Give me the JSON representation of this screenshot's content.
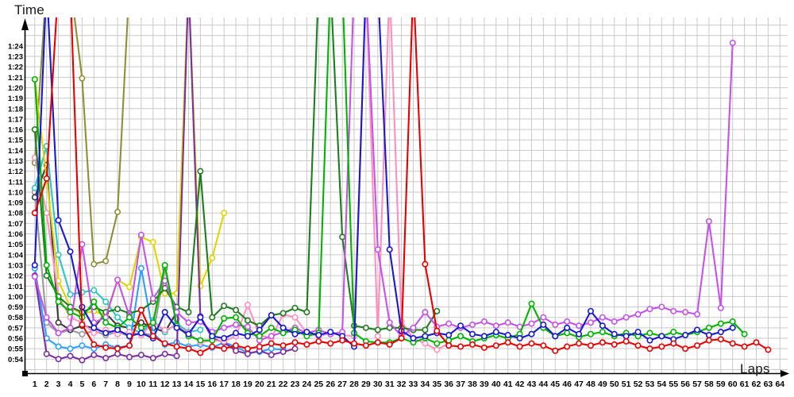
{
  "chart_data": {
    "type": "line",
    "title": "",
    "xlabel": "Laps",
    "ylabel": "Time",
    "x_axis": {
      "min": 1,
      "max": 64,
      "tick_interval": 1
    },
    "y_axis": {
      "min_label": "0:54",
      "max_label": "1:24",
      "tick_interval_seconds": 1,
      "format": "m:ss",
      "off_scale_seconds": 90
    },
    "grid": "on",
    "grid_color": "#c9c9c9",
    "legend": "none",
    "x_tick_labels": [
      "1",
      "2",
      "3",
      "4",
      "5",
      "6",
      "7",
      "8",
      "9",
      "10",
      "11",
      "12",
      "13",
      "14",
      "15",
      "16",
      "17",
      "18",
      "19",
      "20",
      "21",
      "22",
      "23",
      "24",
      "25",
      "26",
      "27",
      "28",
      "29",
      "30",
      "31",
      "32",
      "33",
      "34",
      "35",
      "36",
      "37",
      "38",
      "39",
      "40",
      "41",
      "42",
      "43",
      "44",
      "45",
      "46",
      "47",
      "48",
      "49",
      "50",
      "51",
      "52",
      "53",
      "54",
      "55",
      "56",
      "57",
      "58",
      "59",
      "60",
      "61",
      "62",
      "63",
      "64"
    ],
    "y_tick_labels": [
      "1:24",
      "1:23",
      "1:22",
      "1:21",
      "1:20",
      "1:19",
      "1:18",
      "1:17",
      "1:16",
      "1:15",
      "1:14",
      "1:13",
      "1:12",
      "1:11",
      "1:10",
      "1:09",
      "1:08",
      "1:07",
      "1:06",
      "1:05",
      "1:04",
      "1:03",
      "1:02",
      "1:01",
      "1:00",
      "0:59",
      "0:58",
      "0:57",
      "0:56",
      "0:55",
      "0:54"
    ],
    "note": "values are lap times in seconds; 90 = spike above chart top (off-scale)",
    "series": [
      {
        "name": "olive",
        "color": "#8f8f39",
        "values": [
          72.8,
          90,
          90,
          90,
          80.9,
          63.1,
          63.4,
          68.1,
          90
        ]
      },
      {
        "name": "gray",
        "color": "#9a9a9a",
        "values": [
          70.0,
          57.5,
          56.5,
          56.8,
          56.4,
          56.7,
          56.3,
          56.6,
          56.2,
          56.5,
          56.3,
          62.7,
          57.8
        ]
      },
      {
        "name": "black",
        "color": "#3c3c3c",
        "values": [
          69.5,
          72.6,
          57.5,
          56.8,
          57.2,
          57.0,
          58.4,
          57.2,
          57.0,
          57.5,
          57.0,
          56.6,
          58.5
        ]
      },
      {
        "name": "cyan",
        "color": "#2cc4c4",
        "values": [
          70.4,
          74.4,
          64.0,
          60.2,
          60.4,
          60.6,
          59.5,
          58.0,
          57.0,
          56.5,
          57.7,
          56.6,
          57.4,
          56.6,
          56.8
        ]
      },
      {
        "name": "skyblue",
        "color": "#2e9fff",
        "values": [
          62.7,
          56.0,
          55.2,
          55.0,
          55.3,
          55.0,
          55.4,
          55.1,
          55.3,
          62.7,
          56.5,
          55.4,
          55.6,
          55.2,
          55.4,
          55.1,
          55.6,
          55.2,
          54.6,
          54.7,
          55.0,
          54.9
        ]
      },
      {
        "name": "yellow",
        "color": "#e2d400",
        "values": [
          80.8,
          71.3,
          61.5,
          59.0,
          58.3,
          58.6,
          58.2,
          61.6,
          60.9,
          65.7,
          65.2,
          60.3,
          60.3,
          90,
          61.0,
          63.7,
          68.0
        ]
      },
      {
        "name": "purple",
        "color": "#7b2fa0",
        "values": [
          62.0,
          54.5,
          54.0,
          54.3,
          53.9,
          54.4,
          54.1,
          54.5,
          54.2,
          54.4,
          54.1,
          54.5,
          54.3,
          90,
          58.1,
          56.0,
          55.6,
          54.8,
          54.5,
          54.8,
          54.4,
          54.7,
          55.0
        ]
      },
      {
        "name": "pink",
        "color": "#ff8fc0",
        "values": [
          73.3,
          68.0,
          60.0,
          58.0,
          57.5,
          56.5,
          56.8,
          56.4,
          56.6,
          56.3,
          57.5,
          56.8,
          57.2,
          56.5,
          55.6,
          55.8,
          55.7,
          56.2,
          59.2,
          56.3,
          56.0,
          58.3,
          58.0,
          56.5,
          56.2,
          56.5,
          56.3,
          56.2,
          90,
          56.2,
          90,
          57.6,
          56.0,
          55.5,
          54.9,
          55.5
        ]
      },
      {
        "name": "darkgreen",
        "color": "#1e7d1e",
        "values": [
          76.0,
          62.0,
          60.0,
          59.0,
          58.5,
          59.0,
          58.5,
          58.8,
          58.4,
          58.7,
          59.5,
          60.8,
          59.0,
          58.5,
          72.0,
          58.0,
          59.1,
          58.7,
          57.7,
          57.2,
          58.2,
          58.4,
          58.9,
          58.5,
          90,
          90,
          65.7,
          57.2,
          57.0,
          56.8,
          57.0,
          57.0,
          56.8,
          56.8,
          58.6
        ]
      },
      {
        "name": "magenta",
        "color": "#c653e8",
        "values": [
          61.9,
          58.0,
          56.5,
          57.0,
          65.0,
          57.5,
          58.0,
          61.6,
          58.1,
          65.9,
          59.8,
          61.5,
          58.5,
          57.5,
          57.6,
          56.6,
          57.0,
          57.3,
          57.1,
          55.8,
          56.2,
          56.6,
          57.0,
          56.5,
          56.8,
          56.4,
          56.6,
          90,
          90,
          64.5,
          57.5,
          56.2,
          57.0,
          58.5,
          57.1,
          57.4,
          57.0,
          57.3,
          57.6,
          57.2,
          57.5,
          57.1,
          57.4,
          58.0,
          57.3,
          57.6,
          57.2,
          57.5,
          58.0,
          57.6,
          58.0,
          58.3,
          58.8,
          59.0,
          58.6,
          58.5,
          58.3,
          67.2,
          58.9,
          84.3
        ]
      },
      {
        "name": "green",
        "color": "#00b400",
        "values": [
          80.8,
          63.0,
          59.5,
          58.5,
          58.0,
          59.5,
          57.5,
          57.0,
          58.0,
          57.0,
          57.5,
          63.0,
          57.2,
          56.2,
          55.8,
          55.8,
          57.9,
          58.0,
          56.5,
          56.2,
          57.0,
          56.5,
          56.8,
          56.2,
          56.5,
          90,
          90,
          56.5,
          55.7,
          55.6,
          55.6,
          56.0,
          55.6,
          56.0,
          55.5,
          55.8,
          56.2,
          55.7,
          56.0,
          56.3,
          56.0,
          56.4,
          59.3,
          57.0,
          56.2,
          56.5,
          56.1,
          56.4,
          56.6,
          56.2,
          56.5,
          56.2,
          56.5,
          56.2,
          56.6,
          56.3,
          56.6,
          57.0,
          57.4,
          57.6,
          56.4
        ]
      },
      {
        "name": "blue",
        "color": "#1a1acd",
        "values": [
          63.0,
          90,
          67.3,
          64.3,
          59.0,
          57.0,
          56.5,
          56.8,
          56.2,
          56.5,
          56.0,
          58.5,
          57.0,
          56.4,
          58.0,
          56.2,
          56.0,
          56.5,
          56.2,
          56.8,
          58.2,
          57.0,
          56.4,
          56.6,
          56.3,
          56.6,
          56.2,
          55.2,
          90,
          90,
          64.5,
          56.7,
          56.0,
          56.2,
          56.5,
          56.3,
          57.2,
          56.4,
          56.2,
          56.6,
          56.3,
          56.0,
          56.4,
          57.3,
          56.2,
          57.0,
          56.4,
          58.6,
          57.2,
          56.4,
          56.2,
          56.6,
          55.8,
          56.2,
          55.9,
          56.3,
          56.8,
          56.3,
          56.6,
          57.0
        ]
      },
      {
        "name": "red",
        "color": "#e80000",
        "values": [
          68.0,
          71.3,
          90,
          90,
          57.3,
          55.4,
          55.1,
          55.0,
          55.3,
          58.7,
          56.2,
          55.5,
          55.2,
          55.0,
          54.6,
          55.2,
          55.0,
          55.3,
          55.0,
          55.2,
          55.5,
          55.3,
          55.6,
          55.4,
          55.7,
          55.5,
          55.8,
          55.5,
          55.3,
          55.6,
          55.4,
          56.0,
          90,
          63.1,
          56.7,
          55.3,
          55.2,
          55.4,
          55.1,
          55.3,
          55.6,
          55.2,
          55.5,
          55.3,
          54.8,
          55.2,
          55.5,
          55.3,
          55.6,
          55.4,
          55.7,
          55.3,
          55.0,
          55.2,
          55.5,
          55.0,
          55.3,
          55.8,
          55.9,
          55.5,
          55.2,
          55.6,
          54.9
        ]
      }
    ]
  }
}
